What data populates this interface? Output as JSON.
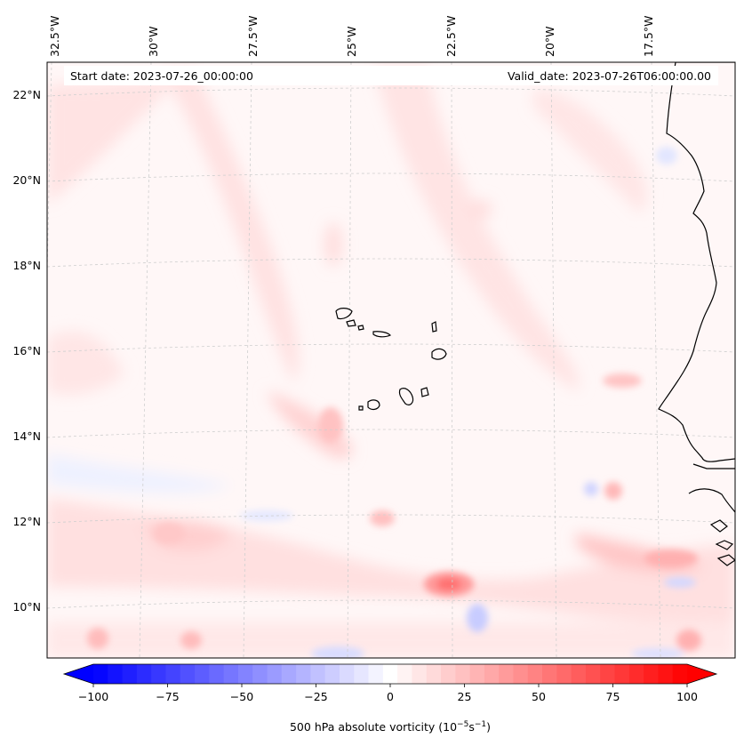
{
  "map": {
    "annotations": {
      "start_date": "Start date: 2023-07-26_00:00:00",
      "valid_date": "Valid_date: 2023-07-26T06:00:00.00"
    },
    "longitude_labels": [
      "32.5°W",
      "30°W",
      "27.5°W",
      "25°W",
      "22.5°W",
      "20°W",
      "17.5°W"
    ],
    "latitude_labels": [
      "22°N",
      "20°N",
      "18°N",
      "16°N",
      "14°N",
      "12°N",
      "10°N"
    ],
    "field": "500 hPa absolute vorticity",
    "land_feature": "coastline-and-cape-verde-islands"
  },
  "colorbar": {
    "label_text": "500 hPa absolute vorticity (10",
    "label_exp1": "−5",
    "label_mid": "s",
    "label_exp2": "−1",
    "label_end": ")",
    "range": [
      -100,
      100
    ],
    "tick_values": [
      -100,
      -75,
      -50,
      -25,
      0,
      25,
      50,
      75,
      100
    ],
    "tick_labels": [
      "−100",
      "−75",
      "−50",
      "−25",
      "0",
      "25",
      "50",
      "75",
      "100"
    ],
    "low_color": "#0000ff",
    "mid_color": "#ffffff",
    "high_color": "#ff0000",
    "levels": 41
  }
}
